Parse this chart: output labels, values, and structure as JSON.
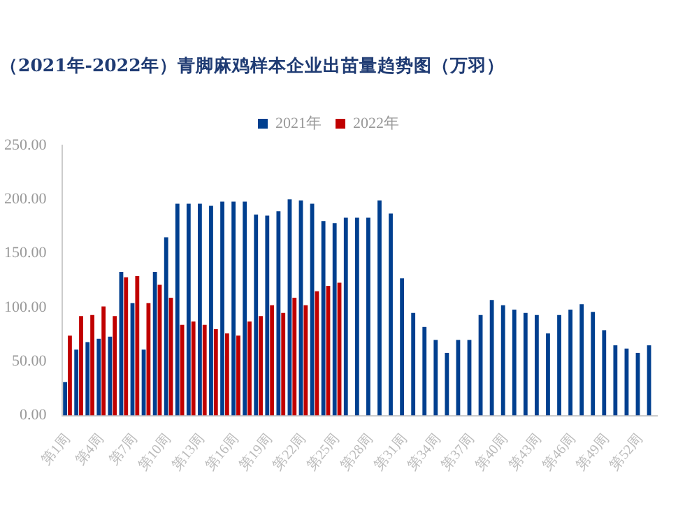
{
  "chart_data": {
    "type": "bar",
    "title": "（2021年-2022年）青脚麻鸡样本企业出苗量趋势图（万羽）",
    "categories": [
      "第1周",
      null,
      null,
      "第4周",
      null,
      null,
      "第7周",
      null,
      null,
      "第10周",
      null,
      null,
      "第13周",
      null,
      null,
      "第16周",
      null,
      null,
      "第19周",
      null,
      null,
      "第22周",
      null,
      null,
      "第25周",
      null,
      null,
      "第28周",
      null,
      null,
      "第31周",
      null,
      null,
      "第34周",
      null,
      null,
      "第37周",
      null,
      null,
      "第40周",
      null,
      null,
      "第43周",
      null,
      null,
      "第46周",
      null,
      null,
      "第49周",
      null,
      null,
      "第52周",
      null
    ],
    "series": [
      {
        "name": "2021年",
        "color": "#003f8f",
        "values": [
          31,
          61,
          68,
          71,
          73,
          133,
          104,
          61,
          133,
          165,
          196,
          196,
          196,
          194,
          198,
          198,
          198,
          186,
          185,
          189,
          200,
          199,
          196,
          180,
          178,
          183,
          183,
          183,
          199,
          187,
          127,
          95,
          82,
          70,
          58,
          70,
          70,
          93,
          107,
          102,
          98,
          95,
          93,
          76,
          93,
          98,
          103,
          96,
          79,
          65,
          62,
          58,
          65
        ]
      },
      {
        "name": "2022年",
        "color": "#c00000",
        "values": [
          74,
          92,
          93,
          101,
          92,
          128,
          129,
          104,
          121,
          109,
          84,
          87,
          84,
          80,
          76,
          74,
          87,
          92,
          102,
          95,
          109,
          102,
          115,
          120,
          123,
          null,
          null,
          null,
          null,
          null,
          null,
          null,
          null,
          null,
          null,
          null,
          null,
          null,
          null,
          null,
          null,
          null,
          null,
          null,
          null,
          null,
          null,
          null,
          null,
          null,
          null,
          null,
          null
        ]
      }
    ],
    "ylim": [
      0,
      250
    ],
    "yticks": [
      {
        "value": 0,
        "label": "0.00"
      },
      {
        "value": 50,
        "label": "50.00"
      },
      {
        "value": 100,
        "label": "100.00"
      },
      {
        "value": 150,
        "label": "150.00"
      },
      {
        "value": 200,
        "label": "200.00"
      },
      {
        "value": 250,
        "label": "250.00"
      }
    ],
    "grid": false,
    "legend": "top"
  }
}
